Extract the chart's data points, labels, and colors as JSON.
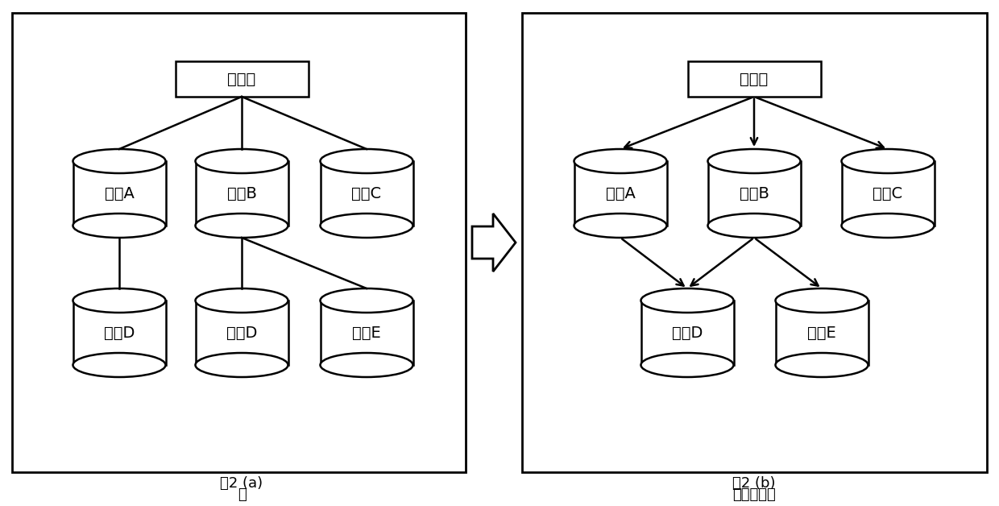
{
  "bg_color": "#ffffff",
  "box_color": "#ffffff",
  "box_edge": "#000000",
  "text_color": "#000000",
  "label_a_title": "内容名",
  "label_b_title": "内容名",
  "containers_a": [
    "容器A",
    "容器B",
    "容器C"
  ],
  "containers_a_bottom": [
    "容器D",
    "容器D",
    "容器E"
  ],
  "containers_b": [
    "容器A",
    "容器B",
    "容器C"
  ],
  "containers_b_bottom": [
    "容器D",
    "容器E"
  ],
  "caption_a_line1": "树",
  "caption_a_line2": "图2 (a)",
  "caption_b_line1": "有向无环图",
  "caption_b_line2": "图2 (b)",
  "font_size_label": 14,
  "font_size_caption": 13
}
